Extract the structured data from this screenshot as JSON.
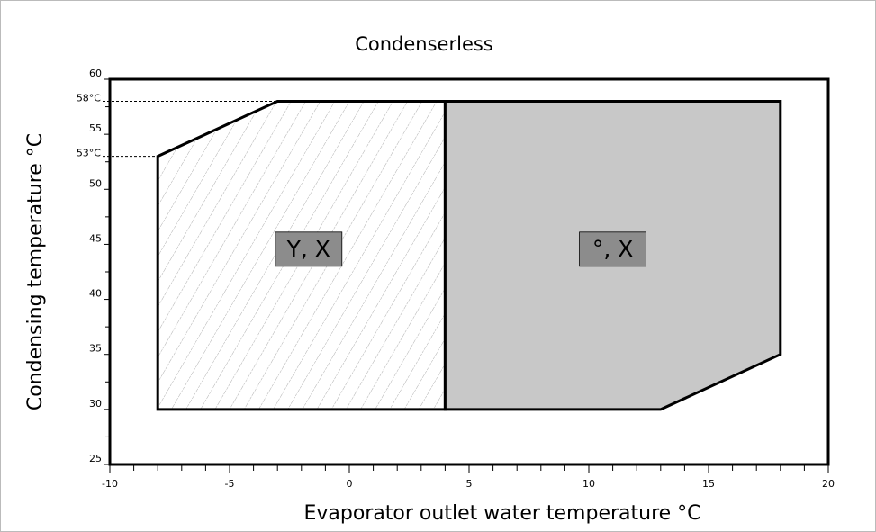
{
  "chart_data": {
    "type": "envelope",
    "title": "Condenserless",
    "x_label": "Evaporator outlet water temperature °C",
    "y_label": "Condensing temperature °C",
    "xlim": [
      -10,
      20
    ],
    "ylim": [
      25,
      60
    ],
    "xticks": [
      -10,
      -5,
      0,
      5,
      10,
      15,
      20
    ],
    "yticks": [
      25,
      30,
      35,
      40,
      45,
      50,
      55,
      60
    ],
    "xminorticks": [
      -9,
      -8,
      -7,
      -6,
      -4,
      -3,
      -2,
      -1,
      1,
      2,
      3,
      4,
      6,
      7,
      8,
      9,
      11,
      12,
      13,
      14,
      16,
      17,
      18,
      19
    ],
    "yminorticks": [
      27.5,
      32.5,
      37.5,
      42.5,
      47.5,
      52.5,
      57.5
    ],
    "regions": [
      {
        "name": "Y, X",
        "pattern": "hatch",
        "color": "#9a9a9a",
        "x": [
          -8,
          -8,
          -3,
          4,
          4
        ],
        "y": [
          30,
          53,
          58,
          58,
          30
        ]
      },
      {
        "name": "°, X",
        "pattern": "solid",
        "color": "#c8c8c8",
        "x": [
          4,
          4,
          18,
          18,
          13
        ],
        "y": [
          30,
          58,
          58,
          35,
          30
        ]
      }
    ],
    "reference_lines": [
      {
        "label": "58°C",
        "value": 58
      },
      {
        "label": "53°C",
        "value": 53
      }
    ]
  }
}
